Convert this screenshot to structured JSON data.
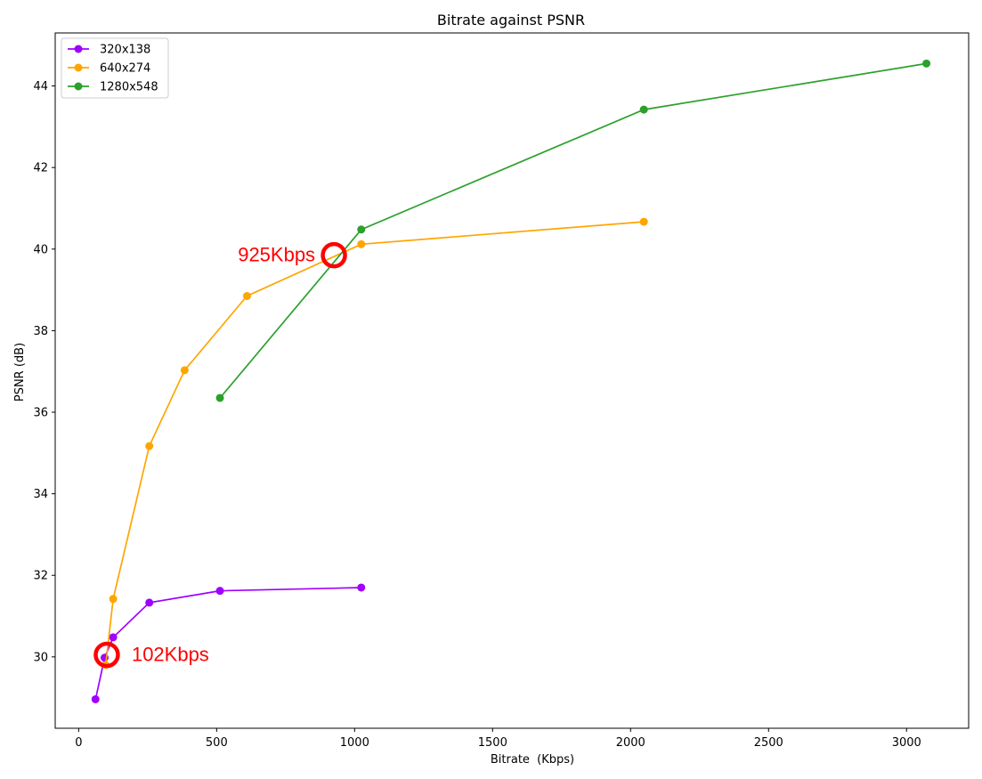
{
  "chart_data": {
    "type": "line",
    "title": "Bitrate against PSNR",
    "xlabel": "Bitrate  (Kbps)",
    "ylabel": "PSNR (dB)",
    "xlim": [
      -85,
      3225
    ],
    "ylim": [
      28.25,
      45.3
    ],
    "xticks": [
      0,
      500,
      1000,
      1500,
      2000,
      2500,
      3000
    ],
    "yticks": [
      30,
      32,
      34,
      36,
      38,
      40,
      42,
      44
    ],
    "grid": false,
    "legend_position": "top-left",
    "series": [
      {
        "name": "320x138",
        "color": "#a000ff",
        "points": [
          [
            61,
            28.96
          ],
          [
            94,
            29.98
          ],
          [
            125,
            30.48
          ],
          [
            256,
            31.33
          ],
          [
            512,
            31.62
          ],
          [
            1024,
            31.7
          ]
        ]
      },
      {
        "name": "640x274",
        "color": "#ffa500",
        "points": [
          [
            98,
            29.8
          ],
          [
            125,
            31.42
          ],
          [
            256,
            35.17
          ],
          [
            384,
            37.03
          ],
          [
            610,
            38.85
          ],
          [
            1024,
            40.12
          ],
          [
            2048,
            40.67
          ]
        ]
      },
      {
        "name": "1280x548",
        "color": "#2ca02c",
        "points": [
          [
            512,
            36.35
          ],
          [
            1024,
            40.48
          ],
          [
            2048,
            43.42
          ],
          [
            3072,
            44.55
          ]
        ]
      }
    ],
    "annotations": [
      {
        "text": "925Kbps",
        "x": 925,
        "y": 39.85,
        "color": "#ff0000",
        "side": "left"
      },
      {
        "text": "102Kbps",
        "x": 102,
        "y": 30.05,
        "color": "#ff0000",
        "side": "right"
      }
    ]
  }
}
